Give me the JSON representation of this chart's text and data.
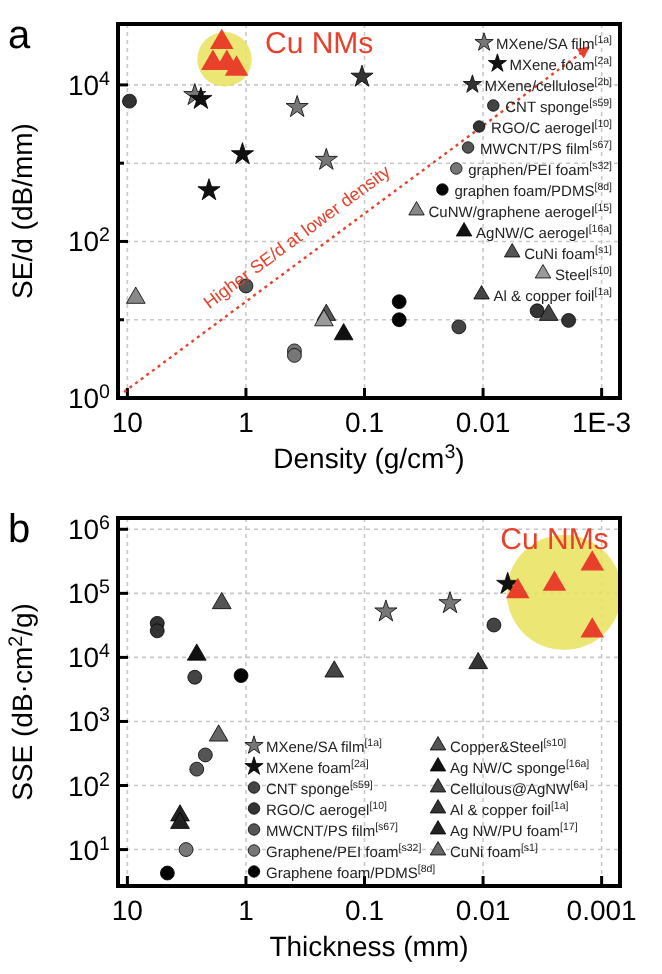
{
  "chart_data": [
    {
      "type": "scatter",
      "title": "a",
      "xlabel": "Density (g/cm$^{3}$)",
      "ylabel": "SE/d (dB/mm)",
      "xlim": [
        12,
        0.0007
      ],
      "xticks": [
        10,
        1,
        0.1,
        0.01,
        {
          "value": 0.001,
          "label": "1E-3"
        }
      ],
      "ylim": [
        1,
        60000
      ],
      "yticks": [
        {
          "value": 1,
          "label": "10$^{0}$"
        },
        {
          "value": 10,
          "label": null
        },
        {
          "value": 100,
          "label": "10$^{2}$"
        },
        {
          "value": 1000,
          "label": null
        },
        {
          "value": 10000,
          "label": "10$^{4}$"
        }
      ],
      "log": "xy",
      "grid": true,
      "legend": "top right",
      "annotations": [
        "Higher SE/d at lower density",
        {
          "text": "Cu NMs",
          "x": 1.6,
          "y": 35000
        }
      ],
      "series": [
        {
          "name": "MXene/SA film$^{[1a]}$",
          "marker": "star",
          "color": "#777777",
          "x": [
            2.7,
            0.37,
            0.21
          ],
          "values": [
            7400,
            5200,
            1100
          ]
        },
        {
          "name": "MXene foam$^{[2a]}$",
          "marker": "star",
          "color": "#111111",
          "x": [
            2.4,
            1.07,
            2.05
          ],
          "values": [
            6600,
            1300,
            450
          ]
        },
        {
          "name": "MXene/cellulose$^{[2b]}$",
          "marker": "star",
          "color": "#333333",
          "x": [
            0.105
          ],
          "values": [
            12700
          ]
        },
        {
          "name": "CNT sponge$^{[s59]}$",
          "marker": "circle",
          "color": "#444444",
          "x": [
            0.016
          ],
          "values": [
            8.1
          ]
        },
        {
          "name": "RGO/C aerogel$^{[10]}$",
          "marker": "circle",
          "color": "#333333",
          "x": [
            9.6,
            0.0035,
            0.0019
          ],
          "values": [
            6200,
            13,
            9.8
          ]
        },
        {
          "name": "MWCNT/PS film$^{[s67]}$",
          "marker": "circle",
          "color": "#555555",
          "x": [
            1.0
          ],
          "values": [
            27
          ]
        },
        {
          "name": "graphen/PEI foam$^{[s32]}$",
          "marker": "circle",
          "color": "#777777",
          "x": [
            0.39,
            0.39
          ],
          "values": [
            4.0,
            3.5
          ]
        },
        {
          "name": "graphen foam/PDMS$^{[8d]}$",
          "marker": "circle",
          "color": "#000000",
          "x": [
            0.051,
            0.051
          ],
          "values": [
            17,
            10
          ]
        },
        {
          "name": "CuNW/graphene aerogel$^{[15]}$",
          "marker": "triangle",
          "color": "#888888",
          "x": [
            8.5
          ],
          "values": [
            19
          ]
        },
        {
          "name": "AgNW/C aerogel$^{[16a]}$",
          "marker": "triangle",
          "color": "#111111",
          "x": [
            0.15
          ],
          "values": [
            6.5
          ]
        },
        {
          "name": "CuNi foam$^{[s1]}$",
          "marker": "triangle",
          "color": "#555555",
          "x": [
            0.21
          ],
          "values": [
            11.5
          ]
        },
        {
          "name": "Steel$^{[s10]}$",
          "marker": "triangle",
          "color": "#999999",
          "x": [
            0.22
          ],
          "values": [
            9.8
          ]
        },
        {
          "name": "Al & copper foil$^{[1a]}$",
          "marker": "triangle",
          "color": "#444444",
          "x": [
            0.0028
          ],
          "values": [
            11.5
          ]
        },
        {
          "marker": "triangle",
          "color": "#e8402a",
          "x": [
            1.6,
            1.9,
            1.45,
            1.2
          ],
          "values": [
            35000,
            19000,
            19000,
            16000
          ]
        }
      ]
    },
    {
      "type": "scatter",
      "title": "b",
      "xlabel": "Thickness (mm)",
      "ylabel": "SSE (dB·cm$^{2}$/g)",
      "xlim": [
        12,
        0.0007
      ],
      "xticks": [
        10,
        1,
        0.1,
        0.01,
        0.001
      ],
      "ylim": [
        2.7,
        1500000
      ],
      "yticks": [
        {
          "value": 10,
          "label": "10$^{1}$"
        },
        {
          "value": 100,
          "label": "10$^{2}$"
        },
        {
          "value": 1000,
          "label": "10$^{3}$"
        },
        {
          "value": 10000,
          "label": "10$^{4}$"
        },
        {
          "value": 100000,
          "label": "10$^{5}$"
        },
        {
          "value": 1000000,
          "label": "10$^{6}$"
        }
      ],
      "log": "xy",
      "grid": true,
      "legend": "bottom right",
      "annotations": [
        {
          "text": "Cu NMs",
          "x": 0.0025,
          "y": 140000
        }
      ],
      "series": [
        {
          "name": "MXene/SA film$^{[1a]}$",
          "marker": "star",
          "color": "#777777",
          "x": [
            0.066,
            0.019
          ],
          "values": [
            52000,
            70000
          ]
        },
        {
          "name": "MXene foam$^{[2a]}$",
          "marker": "star",
          "color": "#111111",
          "x": [
            0.0062
          ],
          "values": [
            140000
          ]
        },
        {
          "name": "CNT sponge$^{[s59]}$",
          "marker": "circle",
          "color": "#444444",
          "x": [
            2.7,
            0.0081
          ],
          "values": [
            4900,
            32000
          ]
        },
        {
          "name": "RGO/C aerogel$^{[10]}$",
          "marker": "circle",
          "color": "#333333",
          "x": [
            5.6,
            5.6
          ],
          "values": [
            34000,
            26000
          ]
        },
        {
          "name": "MWCNT/PS film$^{[s67]}$",
          "marker": "circle",
          "color": "#555555",
          "x": [
            2.2,
            2.6
          ],
          "values": [
            300,
            180
          ]
        },
        {
          "name": "Graphene/PEI foam$^{[s32]}$",
          "marker": "circle",
          "color": "#777777",
          "x": [
            3.2
          ],
          "values": [
            10
          ]
        },
        {
          "name": "Graphene foam/PDMS$^{[8d]}$",
          "marker": "circle",
          "color": "#000000",
          "x": [
            1.1,
            4.6
          ],
          "values": [
            5200,
            4.3
          ]
        },
        {
          "name": "Copper&Steel$^{[s10]}$",
          "marker": "triangle",
          "color": "#555555",
          "x": [
            1.6
          ],
          "values": [
            70000
          ]
        },
        {
          "name": "Ag NW/C sponge$^{[16a]}$",
          "marker": "triangle",
          "color": "#111111",
          "x": [
            2.6
          ],
          "values": [
            11000
          ]
        },
        {
          "name": "Cellulous@AgNW$^{[6a]}$",
          "marker": "triangle",
          "color": "#444444",
          "x": [
            0.18
          ],
          "values": [
            6000
          ]
        },
        {
          "name": "Al & copper foil$^{[1a]}$",
          "marker": "triangle",
          "color": "#333333",
          "x": [
            0.011
          ],
          "values": [
            8100
          ]
        },
        {
          "name": "Ag NW/PU foam$^{[17]}$",
          "marker": "triangle",
          "color": "#222222",
          "x": [
            3.6,
            3.6
          ],
          "values": [
            34,
            26
          ]
        },
        {
          "name": "CuNi foam$^{[s1]}$",
          "marker": "triangle",
          "color": "#666666",
          "x": [
            1.7
          ],
          "values": [
            600
          ]
        },
        {
          "marker": "triangle",
          "color": "#e8402a",
          "x": [
            0.0051,
            0.0025,
            0.0012,
            0.0012
          ],
          "values": [
            107000,
            140000,
            290000,
            26000
          ]
        }
      ]
    }
  ]
}
